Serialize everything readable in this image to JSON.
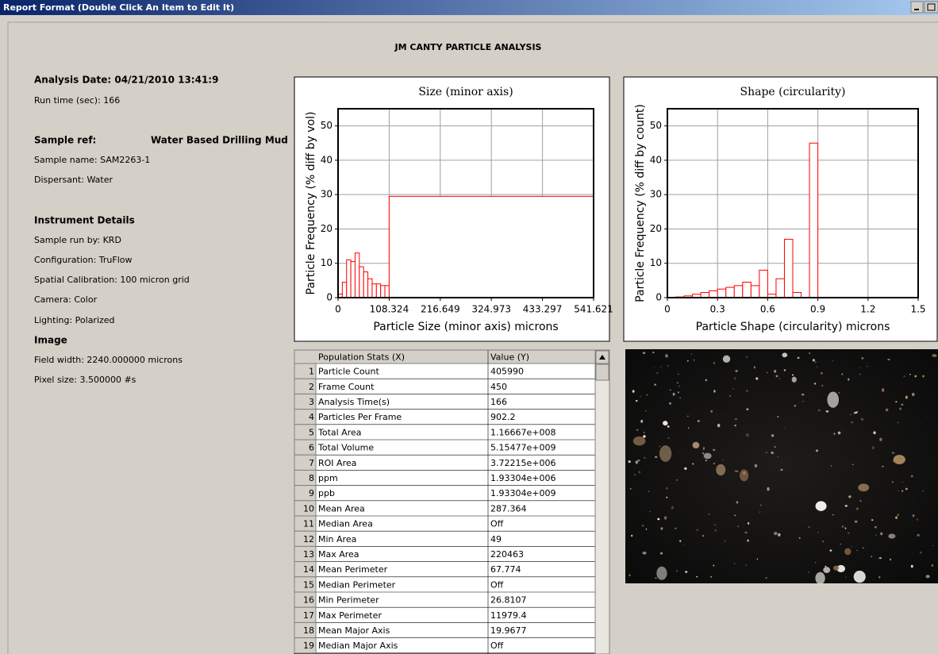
{
  "window": {
    "title": "Report Format (Double Click An Item to Edit It)"
  },
  "report": {
    "title": "JM CANTY PARTICLE ANALYSIS"
  },
  "info": {
    "analysis_date": "Analysis Date: 04/21/2010 13:41:9",
    "run_time": "Run time (sec): 166",
    "sample_ref_label": "Sample ref:",
    "sample_ref": "Water Based Drilling Mud",
    "sample_name": "Sample name: SAM2263-1",
    "dispersant": "Dispersant: Water",
    "instrument_heading": "Instrument Details",
    "run_by": "Sample run by: KRD",
    "configuration": "Configuration: TruFlow",
    "calibration": "Spatial Calibration: 100 micron grid",
    "camera": "Camera: Color",
    "lighting": "Lighting: Polarized",
    "image_heading": "Image",
    "field_width": "Field width: 2240.000000 microns",
    "pixel_size": "Pixel size: 3.500000 #s"
  },
  "chart_data": [
    {
      "type": "histogram",
      "title": "Size (minor axis)",
      "x_label": "Particle Size (minor axis) microns",
      "y_label": "Particle Frequency (% diff by vol)",
      "bins": [
        0,
        9.027,
        18.054,
        27.081,
        36.108,
        45.135,
        54.162,
        63.189,
        72.216,
        81.243,
        90.27,
        99.297,
        108.324,
        541.621
      ],
      "values": [
        1,
        4.5,
        11,
        10.5,
        13,
        9,
        7.5,
        5.5,
        4,
        4,
        3.5,
        3.5,
        29.5
      ],
      "color": "#ff0000",
      "xlim": [
        0,
        541.621
      ],
      "xticks": [
        0,
        108.324,
        216.649,
        324.973,
        433.297,
        541.621
      ],
      "ylim": [
        0,
        55
      ],
      "yticks": [
        0,
        10,
        20,
        30,
        40,
        50
      ],
      "grid": true
    },
    {
      "type": "histogram",
      "title": "Shape (circularity)",
      "x_label": "Particle Shape (circularity) microns",
      "y_label": "Particle Frequency (% diff by count)",
      "bins": [
        0,
        0.05,
        0.1,
        0.15,
        0.2,
        0.25,
        0.3,
        0.35,
        0.4,
        0.45,
        0.5,
        0.55,
        0.6,
        0.65,
        0.7,
        0.75,
        0.8,
        0.85,
        0.9
      ],
      "values": [
        0,
        0.2,
        0.5,
        1,
        1.5,
        2,
        2.5,
        3,
        3.5,
        4.5,
        3.5,
        8,
        1,
        5.5,
        17,
        1.5,
        0,
        45
      ],
      "color": "#ff0000",
      "xlim": [
        0,
        1.5
      ],
      "xticks": [
        0,
        0.3,
        0.6,
        0.9,
        1.2,
        1.5
      ],
      "ylim": [
        0,
        55
      ],
      "yticks": [
        0,
        10,
        20,
        30,
        40,
        50
      ],
      "grid": true
    }
  ],
  "table": {
    "columns": [
      "Population Stats (X)",
      "Value (Y)"
    ],
    "rows": [
      [
        1,
        "Particle Count",
        "405990"
      ],
      [
        2,
        "Frame Count",
        "450"
      ],
      [
        3,
        "Analysis Time(s)",
        "166"
      ],
      [
        4,
        "Particles Per Frame",
        "902.2"
      ],
      [
        5,
        "Total Area",
        "1.16667e+008"
      ],
      [
        6,
        "Total Volume",
        "5.15477e+009"
      ],
      [
        7,
        "ROI Area",
        "3.72215e+006"
      ],
      [
        8,
        "ppm",
        "1.93304e+006"
      ],
      [
        9,
        "ppb",
        "1.93304e+009"
      ],
      [
        10,
        "Mean Area",
        "287.364"
      ],
      [
        11,
        "Median Area",
        "Off"
      ],
      [
        12,
        "Min Area",
        "49"
      ],
      [
        13,
        "Max Area",
        "220463"
      ],
      [
        14,
        "Mean Perimeter",
        "67.774"
      ],
      [
        15,
        "Median Perimeter",
        "Off"
      ],
      [
        16,
        "Min Perimeter",
        "26.8107"
      ],
      [
        17,
        "Max Perimeter",
        "11979.4"
      ],
      [
        18,
        "Mean Major Axis",
        "19.9677"
      ],
      [
        19,
        "Median Major Axis",
        "Off"
      ]
    ]
  }
}
